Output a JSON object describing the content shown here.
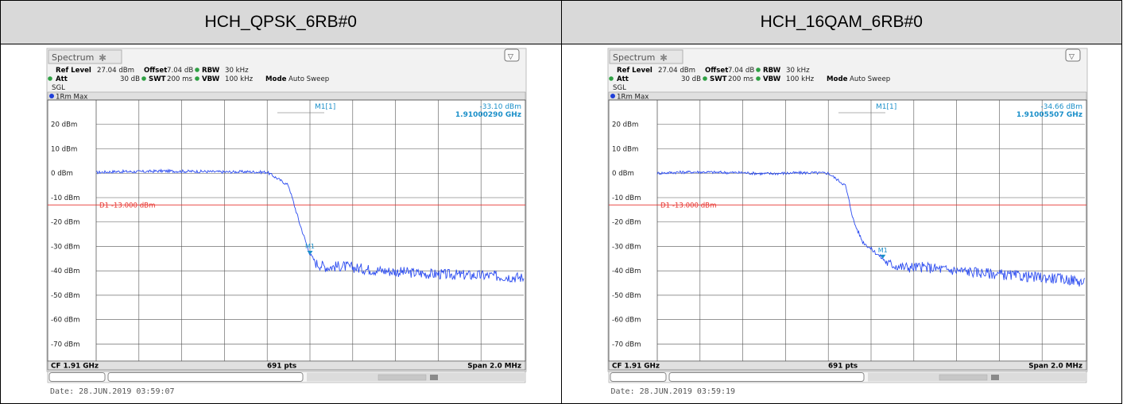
{
  "panels": [
    {
      "header": "HCH_QPSK_6RB#0",
      "spectrum_tab": "Spectrum",
      "settings": {
        "ref_level_label": "Ref Level",
        "ref_level": "27.04 dBm",
        "offset_label": "Offset",
        "offset": "7.04 dB",
        "rbw_label": "RBW",
        "rbw": "30 kHz",
        "att_label": "Att",
        "att": "30 dB",
        "swt_label": "SWT",
        "swt": "200 ms",
        "vbw_label": "VBW",
        "vbw": "100 kHz",
        "mode_label": "Mode",
        "mode": "Auto Sweep",
        "sgl": "SGL"
      },
      "trace_label": "1Rm Max",
      "marker": {
        "name": "M1[1]",
        "level": "-33.10 dBm",
        "freq": "1.91000290 GHz",
        "label": "M1"
      },
      "status": {
        "cf": "CF 1.91 GHz",
        "pts": "691 pts",
        "span": "Span 2.0 MHz"
      },
      "date": "Date: 28.JUN.2019  03:59:07",
      "chart_data": {
        "type": "line",
        "x_unit": "MHz offset from 1.91 GHz",
        "xlim": [
          -1.0,
          1.0
        ],
        "ylim": [
          -77,
          30
        ],
        "ytick_labels": [
          "20 dBm",
          "10 dBm",
          "0 dBm",
          "-10 dBm",
          "-20 dBm",
          "-30 dBm",
          "-40 dBm",
          "-50 dBm",
          "-60 dBm",
          "-70 dBm"
        ],
        "ytick_values": [
          20,
          10,
          0,
          -10,
          -20,
          -30,
          -40,
          -50,
          -60,
          -70
        ],
        "threshold": {
          "label": "D1  -13.000 dBm",
          "value": -13.0,
          "color": "#e8322d"
        },
        "marker_point": {
          "x": 0.0,
          "y": -33.1
        },
        "series": [
          {
            "color": "#2c4cf0",
            "x": [
              -1.0,
              -0.9,
              -0.8,
              -0.7,
              -0.6,
              -0.5,
              -0.4,
              -0.3,
              -0.2,
              -0.1,
              -0.05,
              -0.02,
              0.0,
              0.03,
              0.08,
              0.15,
              0.25,
              0.35,
              0.45,
              0.55,
              0.65,
              0.75,
              0.85,
              0.95,
              1.0
            ],
            "y": [
              0.3,
              0.7,
              0.6,
              0.9,
              0.8,
              0.7,
              0.5,
              0.6,
              0.4,
              -5.0,
              -20.0,
              -28.0,
              -33.1,
              -37.0,
              -38.5,
              -38.0,
              -39.2,
              -40.0,
              -40.6,
              -41.2,
              -41.5,
              -41.8,
              -42.0,
              -42.5,
              -42.8
            ]
          }
        ]
      }
    },
    {
      "header": "HCH_16QAM_6RB#0",
      "spectrum_tab": "Spectrum",
      "settings": {
        "ref_level_label": "Ref Level",
        "ref_level": "27.04 dBm",
        "offset_label": "Offset",
        "offset": "7.04 dB",
        "rbw_label": "RBW",
        "rbw": "30 kHz",
        "att_label": "Att",
        "att": "30 dB",
        "swt_label": "SWT",
        "swt": "200 ms",
        "vbw_label": "VBW",
        "vbw": "100 kHz",
        "mode_label": "Mode",
        "mode": "Auto Sweep",
        "sgl": "SGL"
      },
      "trace_label": "1Rm Max",
      "marker": {
        "name": "M1[1]",
        "level": "-34.66 dBm",
        "freq": "1.91005507 GHz",
        "label": "M1"
      },
      "status": {
        "cf": "CF 1.91 GHz",
        "pts": "691 pts",
        "span": "Span 2.0 MHz"
      },
      "date": "Date: 28.JUN.2019  03:59:19",
      "chart_data": {
        "type": "line",
        "x_unit": "MHz offset from 1.91 GHz",
        "xlim": [
          -1.0,
          1.0
        ],
        "ylim": [
          -77,
          30
        ],
        "ytick_labels": [
          "20 dBm",
          "10 dBm",
          "0 dBm",
          "-10 dBm",
          "-20 dBm",
          "-30 dBm",
          "-40 dBm",
          "-50 dBm",
          "-60 dBm",
          "-70 dBm"
        ],
        "ytick_values": [
          20,
          10,
          0,
          -10,
          -20,
          -30,
          -40,
          -50,
          -60,
          -70
        ],
        "threshold": {
          "label": "D1  -13.000 dBm",
          "value": -13.0,
          "color": "#e8322d"
        },
        "marker_point": {
          "x": 0.055,
          "y": -34.66
        },
        "series": [
          {
            "color": "#2c4cf0",
            "x": [
              -1.0,
              -0.9,
              -0.8,
              -0.7,
              -0.6,
              -0.5,
              -0.4,
              -0.3,
              -0.2,
              -0.12,
              -0.08,
              -0.04,
              0.0,
              0.05,
              0.08,
              0.15,
              0.25,
              0.35,
              0.45,
              0.55,
              0.65,
              0.75,
              0.85,
              0.95,
              1.0
            ],
            "y": [
              0.0,
              0.4,
              0.5,
              0.3,
              0.2,
              -0.2,
              0.0,
              0.2,
              0.0,
              -5.0,
              -20.0,
              -28.0,
              -31.0,
              -34.7,
              -37.0,
              -38.5,
              -38.5,
              -39.5,
              -40.2,
              -41.0,
              -41.8,
              -42.5,
              -43.0,
              -43.8,
              -45.0
            ]
          }
        ]
      }
    }
  ]
}
